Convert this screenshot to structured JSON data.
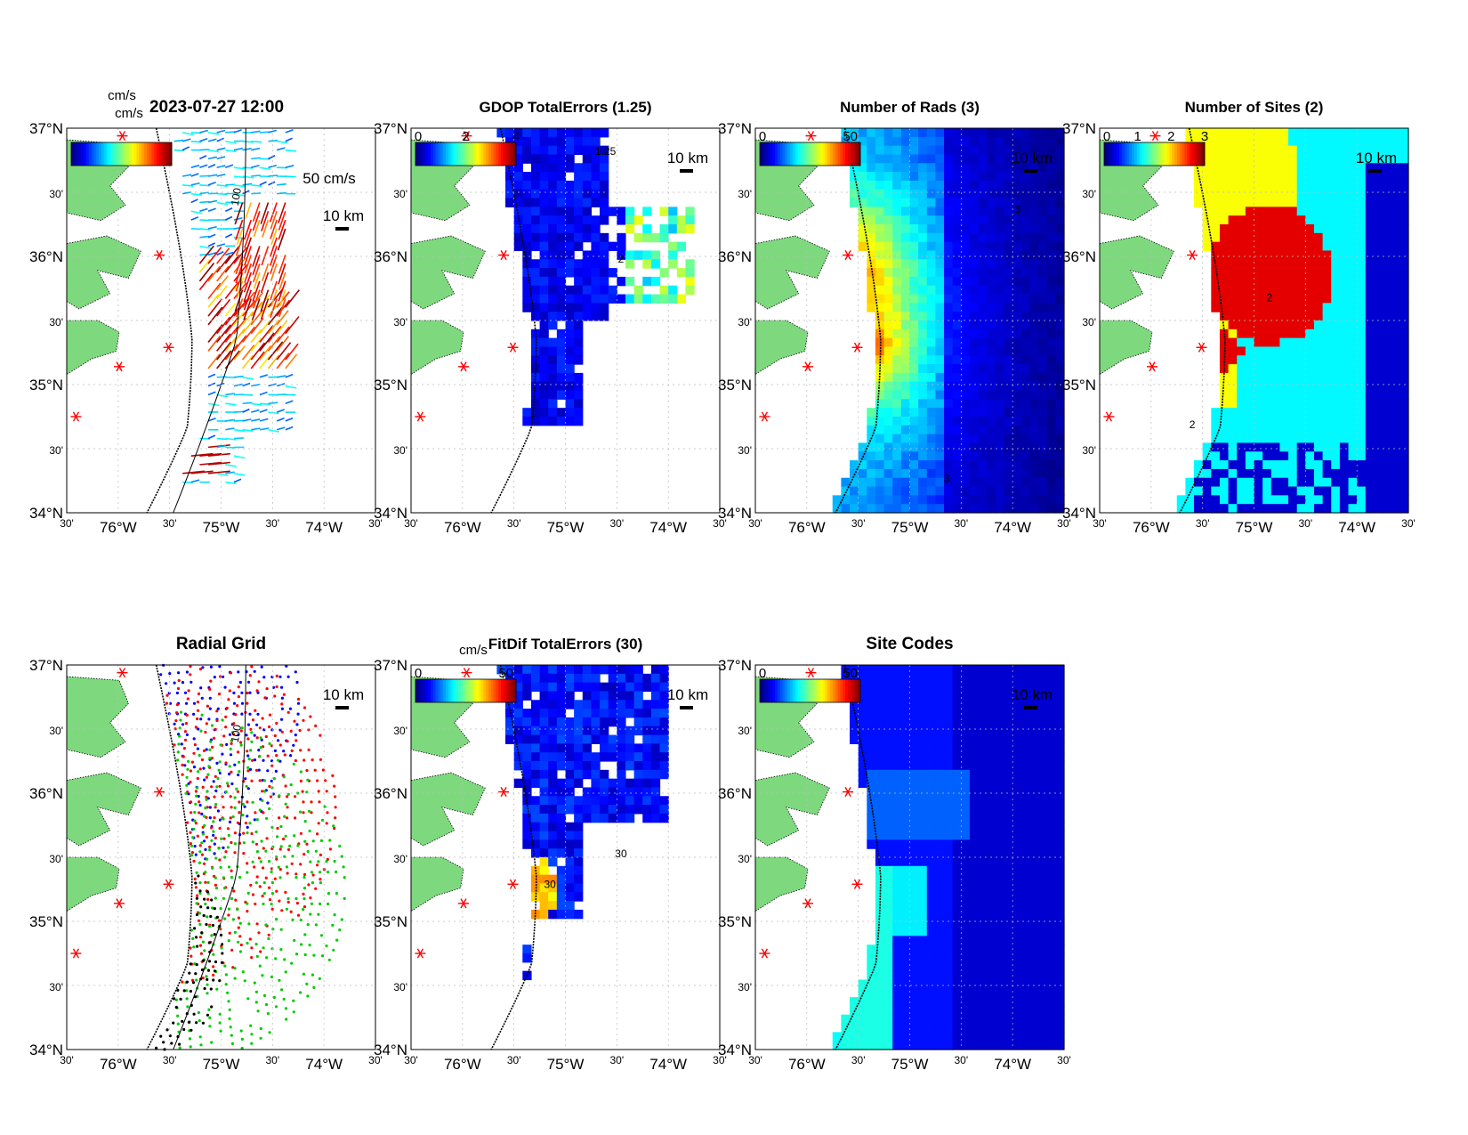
{
  "panels": [
    {
      "id": "currents",
      "title": "2023-07-27 12:00",
      "unit": "cm/s",
      "colorbar_ticks": [],
      "scale_label": "50 cm/s",
      "distance_label": "10 km",
      "field": "vectors"
    },
    {
      "id": "gdop",
      "title": "GDOP TotalErrors (1.25)",
      "unit": "",
      "colorbar_ticks": [
        "0",
        "2",
        "4"
      ],
      "scale_label": "",
      "distance_label": "10 km",
      "field": "gdop"
    },
    {
      "id": "nrads",
      "title": "Number of Rads (3)",
      "unit": "",
      "colorbar_ticks": [
        "0",
        "50"
      ],
      "scale_label": "",
      "distance_label": "10 km",
      "field": "nrads"
    },
    {
      "id": "nsites",
      "title": "Number of Sites (2)",
      "unit": "",
      "colorbar_ticks": [
        "0",
        "1",
        "2",
        "3"
      ],
      "scale_label": "",
      "distance_label": "10 km",
      "field": "nsites"
    },
    {
      "id": "radgrid",
      "title": "Radial Grid",
      "unit": "",
      "colorbar_ticks": [],
      "scale_label": "",
      "distance_label": "10 km",
      "field": "radgrid"
    },
    {
      "id": "fitdif",
      "title": "FitDif TotalErrors (30)",
      "unit": "cm/s",
      "colorbar_ticks": [
        "0",
        "50"
      ],
      "scale_label": "",
      "distance_label": "10 km",
      "field": "fitdif"
    },
    {
      "id": "sitecodes",
      "title": "Site Codes",
      "unit": "",
      "colorbar_ticks": [
        "0",
        "50"
      ],
      "scale_label": "",
      "distance_label": "10 km",
      "field": "sitecodes"
    }
  ],
  "axes": {
    "lat_labels": [
      "37°N",
      "30'",
      "36°N",
      "30'",
      "35°N",
      "30'",
      "34°N"
    ],
    "lon_labels": [
      "30'",
      "76°W",
      "30'",
      "75°W",
      "30'",
      "74°W",
      "30'"
    ]
  },
  "contour_labels": {
    "isobath": "100",
    "gdop": "1.25",
    "gdop2": "2",
    "nrads": "3",
    "nsites": "2",
    "fitdif": "30"
  },
  "colors": {
    "land": "#7ed97e",
    "site": "#ff0000",
    "grid_site1": "#0000ff",
    "grid_site2": "#ff0000",
    "grid_site3": "#00cc00",
    "grid_site4": "#000000"
  }
}
